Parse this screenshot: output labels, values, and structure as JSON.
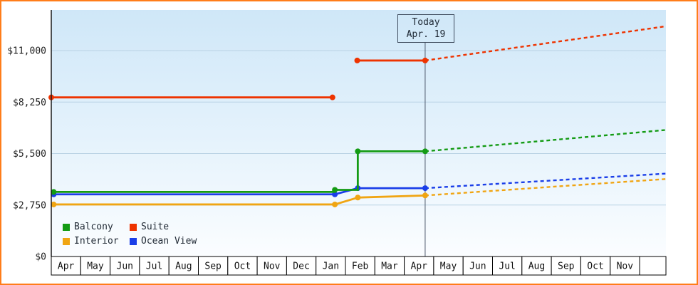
{
  "frame": {
    "border_color": "#ff7d1a"
  },
  "today_flag": {
    "line1": "Today",
    "line2": "Apr. 19"
  },
  "legend": [
    {
      "label": "Balcony",
      "color": "#149b14"
    },
    {
      "label": "Suite",
      "color": "#ee3300"
    },
    {
      "label": "Interior",
      "color": "#f0a513"
    },
    {
      "label": "Ocean View",
      "color": "#1a3ee8"
    }
  ],
  "chart_data": {
    "type": "line",
    "title": "",
    "grid": true,
    "legend_position": "bottom-left",
    "ylim": [
      0,
      13150
    ],
    "y_ticks": [
      {
        "label": "$0",
        "value": 0
      },
      {
        "label": "$2,750",
        "value": 2750
      },
      {
        "label": "$5,500",
        "value": 5500
      },
      {
        "label": "$8,250",
        "value": 8250
      },
      {
        "label": "$11,000",
        "value": 11000
      }
    ],
    "x_months": [
      "Apr",
      "May",
      "Jun",
      "Jul",
      "Aug",
      "Sep",
      "Oct",
      "Nov",
      "Dec",
      "Jan",
      "Feb",
      "Mar",
      "Apr",
      "May",
      "Jun",
      "Jul",
      "Aug",
      "Sep",
      "Oct",
      "Nov"
    ],
    "today": {
      "t": 12.71,
      "label": "Today Apr. 19"
    },
    "series": [
      {
        "name": "Interior",
        "color": "#f0a513",
        "solid_segments": [
          [
            [
              0.08,
              2780
            ],
            [
              9.64,
              2780
            ],
            [
              10.42,
              3150
            ],
            [
              12.71,
              3260
            ]
          ]
        ],
        "dashed": [
          [
            12.71,
            3260
          ],
          [
            20.9,
            4140
          ]
        ],
        "markers": [
          [
            0.08,
            2780
          ],
          [
            9.64,
            2780
          ],
          [
            10.42,
            3150
          ],
          [
            12.71,
            3260
          ]
        ]
      },
      {
        "name": "Ocean View",
        "color": "#1a3ee8",
        "solid_segments": [
          [
            [
              0.08,
              3320
            ],
            [
              9.64,
              3320
            ],
            [
              10.42,
              3650
            ],
            [
              12.71,
              3650
            ]
          ]
        ],
        "dashed": [
          [
            12.71,
            3650
          ],
          [
            20.9,
            4430
          ]
        ],
        "markers": [
          [
            0.08,
            3320
          ],
          [
            9.64,
            3320
          ],
          [
            10.42,
            3650
          ],
          [
            12.71,
            3650
          ]
        ]
      },
      {
        "name": "Balcony",
        "color": "#149b14",
        "solid_segments": [
          [
            [
              0.08,
              3450
            ],
            [
              9.64,
              3450
            ],
            [
              9.64,
              3560
            ],
            [
              10.42,
              3560
            ],
            [
              10.42,
              5620
            ],
            [
              12.71,
              5620
            ]
          ]
        ],
        "dashed": [
          [
            12.71,
            5620
          ],
          [
            20.9,
            6760
          ]
        ],
        "markers": [
          [
            0.08,
            3450
          ],
          [
            9.64,
            3560
          ],
          [
            10.42,
            5620
          ],
          [
            12.71,
            5620
          ]
        ]
      },
      {
        "name": "Suite",
        "color": "#ee3300",
        "solid_segments": [
          [
            [
              0,
              8500
            ],
            [
              9.56,
              8500
            ]
          ],
          [
            [
              10.4,
              10470
            ],
            [
              12.71,
              10470
            ]
          ]
        ],
        "dashed": [
          [
            12.71,
            10470
          ],
          [
            20.9,
            12300
          ]
        ],
        "markers": [
          [
            0,
            8500
          ],
          [
            9.56,
            8500
          ],
          [
            10.4,
            10470
          ],
          [
            12.71,
            10470
          ]
        ]
      }
    ]
  }
}
